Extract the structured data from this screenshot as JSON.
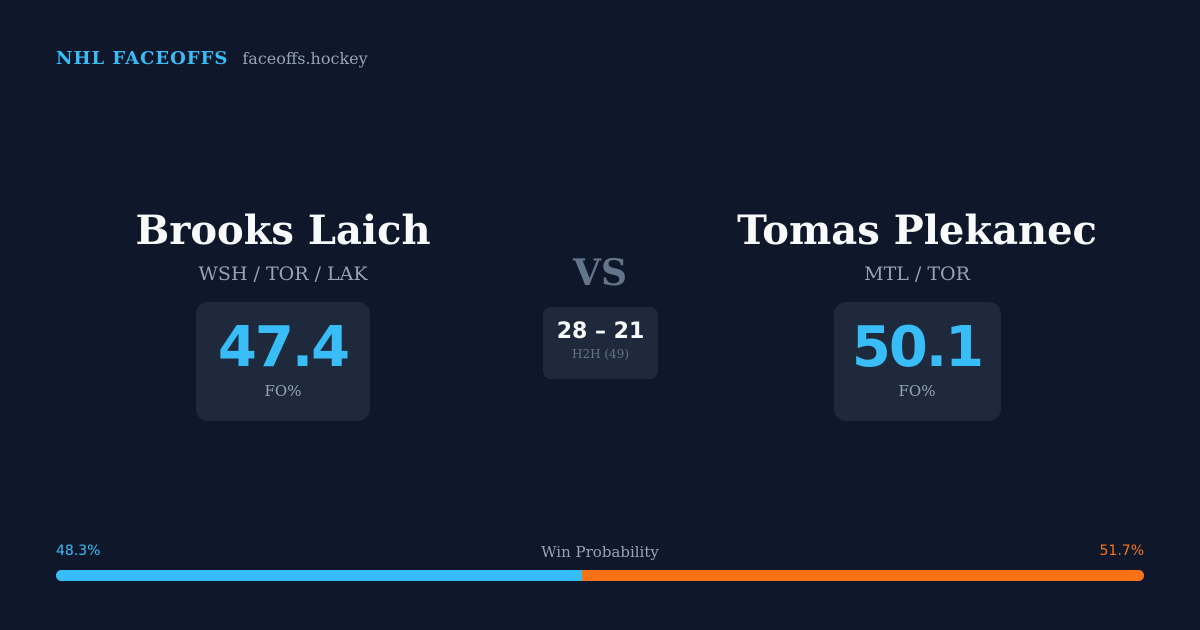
{
  "brand": {
    "title": "NHL FACEOFFS",
    "domain": "faceoffs.hockey"
  },
  "player_left": {
    "name": "Brooks Laich",
    "teams": "WSH / TOR / LAK",
    "fo_value": "47.4",
    "fo_label": "FO%"
  },
  "player_right": {
    "name": "Tomas Plekanec",
    "teams": "MTL / TOR",
    "fo_value": "50.1",
    "fo_label": "FO%"
  },
  "matchup": {
    "vs_label": "VS",
    "h2h_score": "28 – 21",
    "h2h_label": "H2H (49)"
  },
  "win_probability": {
    "label": "Win Probability",
    "left_text": "48.3%",
    "right_text": "51.7%",
    "left_fraction": 0.483,
    "left_color": "#38bdf8",
    "right_color": "#f97316"
  },
  "colors": {
    "background": "#0f172a",
    "card": "#1e293b",
    "accent": "#38bdf8",
    "secondary_accent": "#f97316",
    "muted_text": "#94a3b8"
  }
}
